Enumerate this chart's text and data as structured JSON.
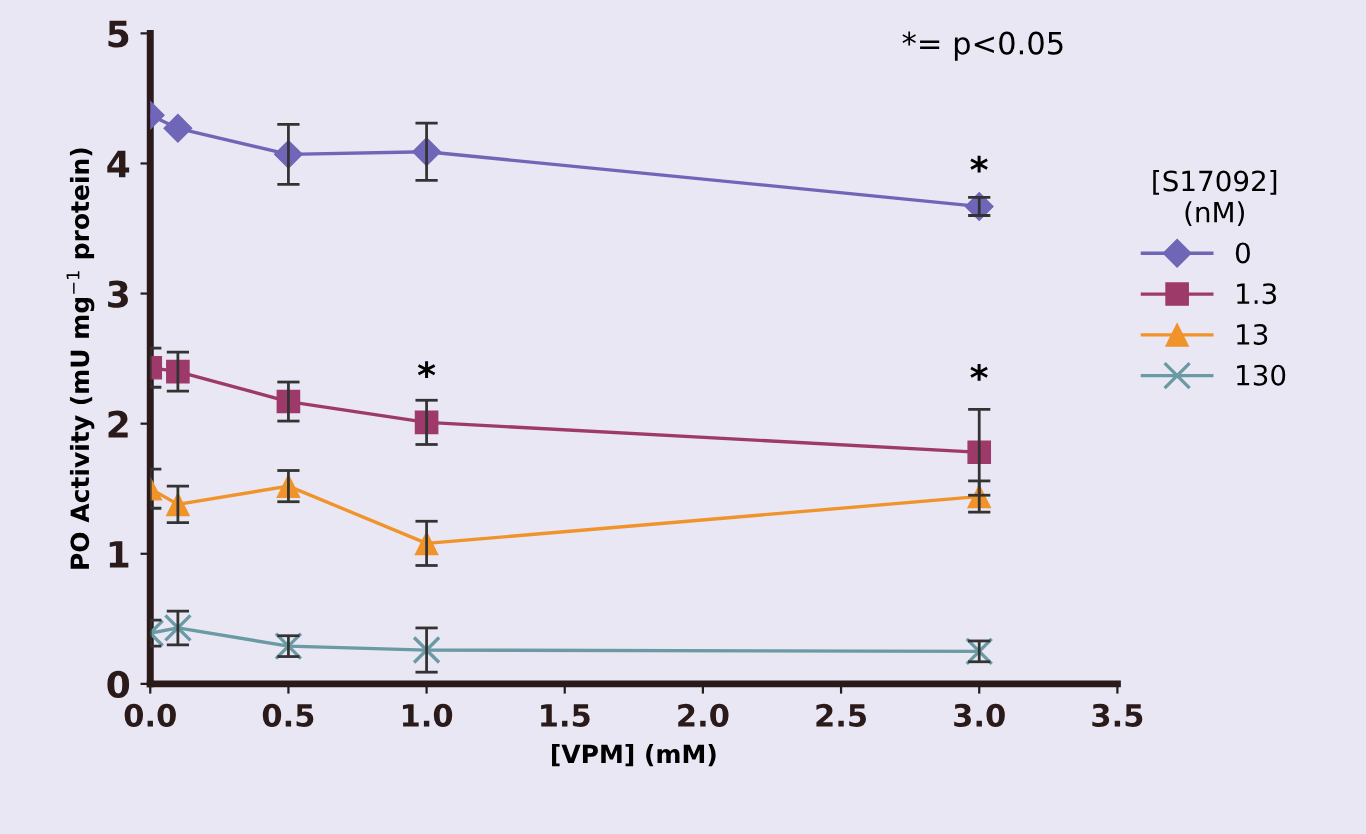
{
  "chart_data": {
    "type": "line",
    "xlabel": "[VPM] (mM)",
    "ylabel": "PO Activity (mU mg$^{−1}$ protein)",
    "legend_title": "[S17092]\n(nM)",
    "x": [
      0,
      0.1,
      0.5,
      1.0,
      3.0
    ],
    "series": [
      {
        "name": "0",
        "color": "#7066b8",
        "marker": "diamond",
        "values": [
          4.37,
          4.27,
          4.07,
          4.09,
          3.67
        ],
        "errors": [
          null,
          null,
          0.23,
          0.22,
          0.07
        ]
      },
      {
        "name": "1.3",
        "color": "#9e3a6a",
        "marker": "square",
        "values": [
          2.43,
          2.4,
          2.17,
          2.01,
          1.78
        ],
        "errors": [
          0.15,
          0.15,
          0.15,
          0.17,
          0.33
        ]
      },
      {
        "name": "13",
        "color": "#f0932b",
        "marker": "triangle",
        "values": [
          1.5,
          1.38,
          1.52,
          1.08,
          1.44
        ],
        "errors": [
          0.15,
          0.14,
          0.12,
          0.17,
          0.12
        ]
      },
      {
        "name": "130",
        "color": "#6a9aa3",
        "marker": "cross",
        "values": [
          0.39,
          0.43,
          0.29,
          0.26,
          0.25
        ],
        "errors": [
          0.1,
          0.13,
          0.08,
          0.17,
          0.08
        ]
      }
    ],
    "xlim": [
      0,
      3.5
    ],
    "xticks": [
      {
        "value": 0,
        "label": "0.0"
      },
      0.5,
      {
        "value": 1,
        "label": "1.0"
      },
      1.5,
      {
        "value": 2,
        "label": "2.0"
      },
      2.5,
      {
        "value": 3,
        "label": "3.0"
      },
      3.5
    ],
    "ylim": [
      0,
      5
    ],
    "yticks": [
      0,
      1,
      2,
      3,
      4,
      5
    ],
    "annotations": [
      "*= p<0.05",
      "*",
      "*",
      "*"
    ],
    "grid": false,
    "legend": "right",
    "line_style": "solid"
  }
}
